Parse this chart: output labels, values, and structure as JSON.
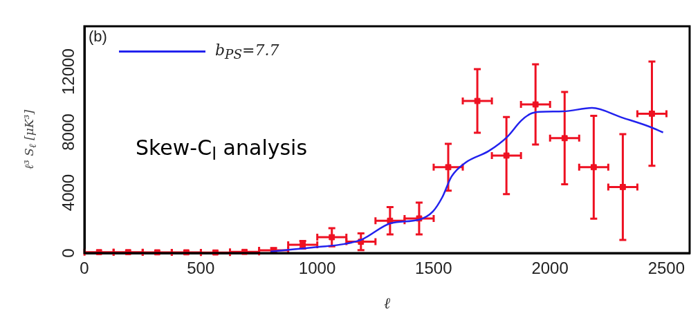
{
  "chart_data": {
    "type": "scatter",
    "xlabel": "ℓ",
    "ylabel": "ℓ³ S$_{ℓ}$ [μK³]",
    "xlim": [
      0,
      2600
    ],
    "xticks": [
      0,
      500,
      1000,
      1500,
      2000,
      2500
    ],
    "ylim": [
      0,
      15000
    ],
    "yticks": [
      0,
      4000,
      8000,
      12000
    ],
    "grid": false,
    "legend": "top left",
    "annotations": [
      "(b)",
      "Skew-C$_{l}$ analysis"
    ],
    "series": [
      {
        "name": "b$_{PS}$=7.7",
        "type": "line",
        "color": "#2222ee",
        "marker": "none",
        "line_style": "solid",
        "x": [
          800,
          900,
          1000,
          1117,
          1192,
          1317,
          1437,
          1497,
          1537,
          1577,
          1637,
          1737,
          1816,
          1876,
          1916,
          1957,
          2057,
          2181,
          2306,
          2426,
          2486
        ],
        "values": [
          100,
          250,
          400,
          600,
          900,
          1980,
          2210,
          2750,
          3680,
          5060,
          5980,
          6750,
          7680,
          8750,
          9210,
          9340,
          9370,
          9600,
          8980,
          8370,
          7980
        ]
      },
      {
        "color": "#ee1122",
        "marker": "square",
        "x": [
          63,
          188,
          313,
          438,
          563,
          688,
          813,
          938,
          1063,
          1188,
          1313,
          1438,
          1563,
          1688,
          1813,
          1938,
          2063,
          2188,
          2313,
          2438
        ],
        "values": [
          60,
          60,
          50,
          50,
          40,
          80,
          180,
          550,
          1050,
          750,
          2140,
          2290,
          5680,
          10060,
          6450,
          9830,
          7600,
          5680,
          4370,
          9220
        ],
        "errors": [
          null,
          null,
          null,
          null,
          null,
          null,
          150,
          250,
          600,
          550,
          900,
          1050,
          1550,
          2100,
          2550,
          2650,
          3050,
          3400,
          3500,
          3450
        ],
        "xerrors": [
          62.5,
          62.5,
          62.5,
          62.5,
          62.5,
          62.5,
          62.5,
          62.5,
          62.5,
          62.5,
          62.5,
          62.5,
          62.5,
          62.5,
          62.5,
          62.5,
          62.5,
          62.5,
          62.5,
          62.5
        ]
      }
    ]
  }
}
